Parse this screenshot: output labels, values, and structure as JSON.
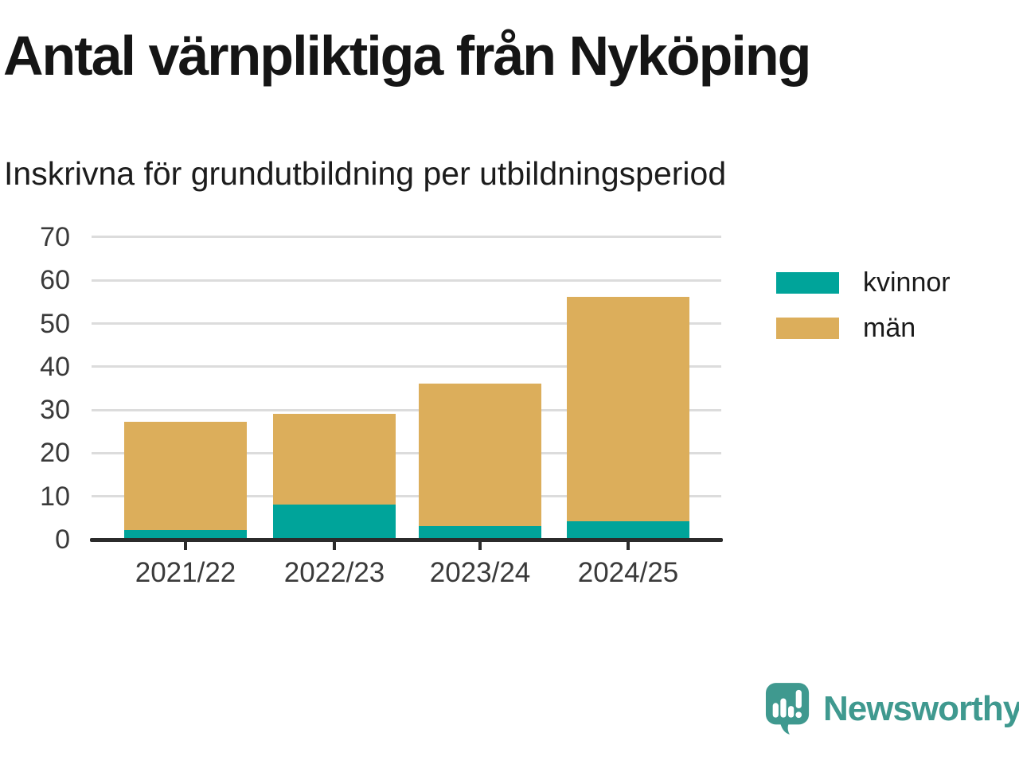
{
  "header": {
    "title": "Antal värnpliktiga från Nyköping",
    "subtitle": "Inskrivna för grundutbildning per utbildningsperiod"
  },
  "chart_data": {
    "type": "bar",
    "stacked": true,
    "title": "Antal värnpliktiga från Nyköping",
    "subtitle": "Inskrivna för grundutbildning per utbildningsperiod",
    "categories": [
      "2021/22",
      "2022/23",
      "2023/24",
      "2024/25"
    ],
    "series": [
      {
        "name": "kvinnor",
        "color": "#00a49a",
        "values": [
          2,
          8,
          3,
          4
        ]
      },
      {
        "name": "män",
        "color": "#dcae5b",
        "values": [
          25,
          21,
          33,
          52
        ]
      }
    ],
    "stack_totals": [
      27,
      29,
      36,
      56
    ],
    "xlabel": "",
    "ylabel": "",
    "ylim": [
      0,
      70
    ],
    "yticks": [
      0,
      10,
      20,
      30,
      40,
      50,
      60,
      70
    ],
    "grid": true,
    "legend_position": "right"
  },
  "legend": {
    "items": [
      {
        "label": "kvinnor",
        "color": "#00a49a"
      },
      {
        "label": "män",
        "color": "#dcae5b"
      }
    ]
  },
  "branding": {
    "wordmark": "Newsworthy",
    "color": "#3f998f",
    "icon": "bar-chart-speech-bubble-icon"
  },
  "colors": {
    "kvinnor": "#00a49a",
    "man": "#dcae5b",
    "grid": "#dcdcdc",
    "axis": "#2b2b2b",
    "logo": "#3f998f"
  }
}
